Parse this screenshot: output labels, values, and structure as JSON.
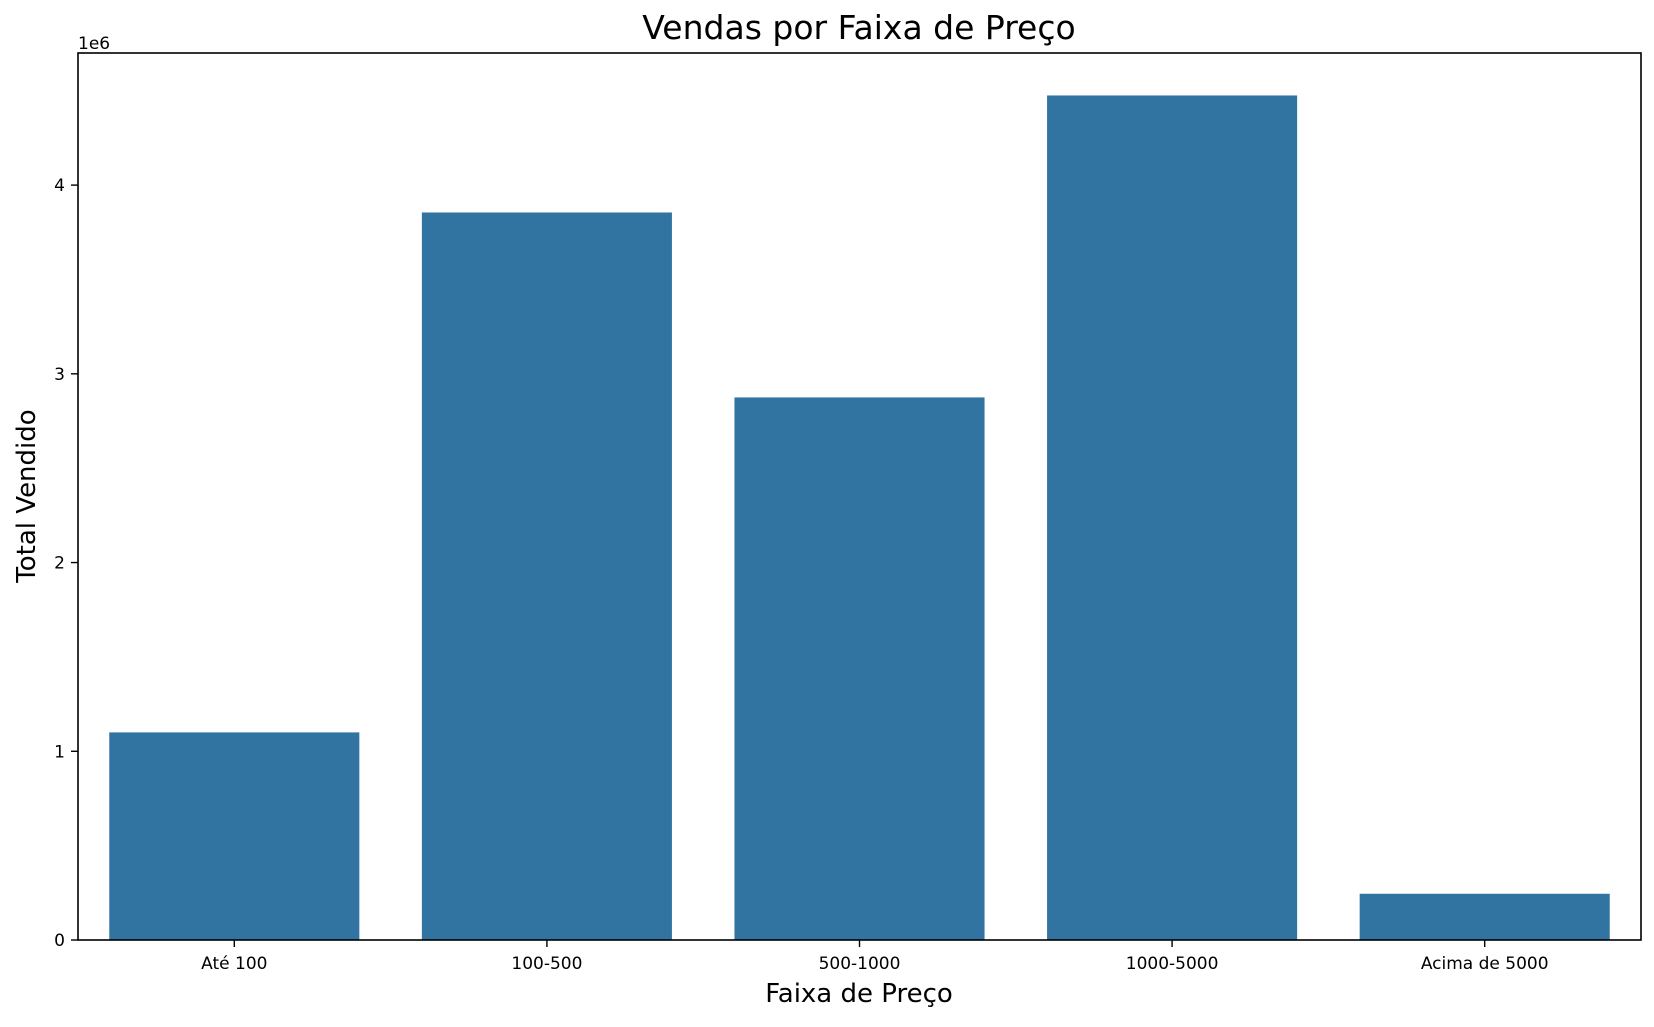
{
  "chart_data": {
    "type": "bar",
    "title": "Vendas por Faixa de Preço",
    "xlabel": "Faixa de Preço",
    "ylabel": "Total Vendido",
    "y_offset_label": "1e6",
    "categories": [
      "Até 100",
      "100-500",
      "500-1000",
      "1000-5000",
      "Acima de 5000"
    ],
    "values": [
      1100000,
      3855000,
      2875000,
      4475000,
      245000
    ],
    "ylim": [
      0,
      4700000
    ],
    "yticks": [
      0,
      1000000,
      2000000,
      3000000,
      4000000
    ],
    "ytick_labels": [
      "0",
      "1",
      "2",
      "3",
      "4"
    ],
    "bar_color": "#3274a1",
    "grid": false,
    "legend": "none"
  }
}
